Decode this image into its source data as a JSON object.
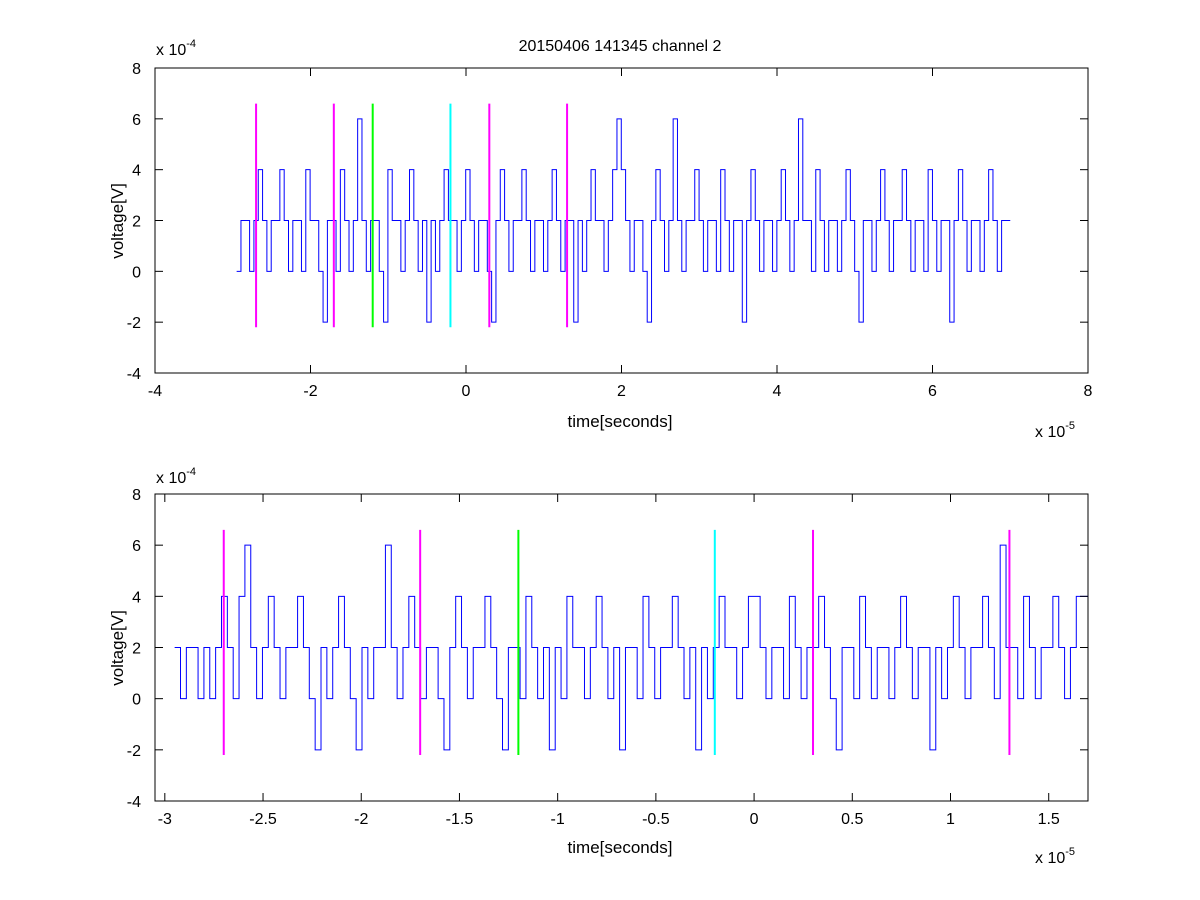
{
  "figure_title": "20150406 141345 channel 2",
  "chart_data": [
    {
      "type": "line",
      "title": "20150406 141345 channel 2",
      "xlabel": "time[seconds]",
      "ylabel": "voltage[V]",
      "x_exponent_label": "x 10",
      "x_exponent_power": "-5",
      "y_exponent_label": "x 10",
      "y_exponent_power": "-4",
      "xlim": [
        -4e-05,
        8e-05
      ],
      "ylim": [
        -0.0004,
        0.0008
      ],
      "x_ticks": [
        -4,
        -2,
        0,
        2,
        4,
        6,
        8
      ],
      "y_ticks": [
        -4,
        -2,
        0,
        2,
        4,
        6,
        8
      ],
      "grid": false,
      "series": [
        {
          "color": "#0000ff",
          "x_start": -2.95e-05,
          "x_end": 7e-05,
          "levels_scaled_1e-4": [
            0,
            2,
            2,
            0,
            2,
            4,
            2,
            0,
            2,
            2,
            4,
            2,
            0,
            2,
            2,
            0,
            4,
            2,
            2,
            0,
            -2,
            2,
            2,
            0,
            4,
            2,
            0,
            2,
            6,
            2,
            0,
            2,
            2,
            0,
            -2,
            4,
            2,
            2,
            0,
            2,
            4,
            2,
            0,
            2,
            -2,
            2,
            0,
            2,
            4,
            2,
            2,
            0,
            2,
            4,
            2,
            0,
            2,
            2,
            0,
            -2,
            2,
            4,
            2,
            0,
            2,
            2,
            4,
            2,
            0,
            2,
            2,
            0,
            2,
            4,
            2,
            0,
            2,
            2,
            -2,
            2,
            0,
            2,
            4,
            2,
            2,
            0,
            2,
            4,
            6,
            4,
            2,
            0,
            2,
            2,
            0,
            -2,
            2,
            4,
            2,
            0,
            2,
            6,
            2,
            0,
            2,
            2,
            4,
            2,
            0,
            2,
            2,
            0,
            4,
            2,
            0,
            2,
            2,
            -2,
            2,
            4,
            2,
            0,
            2,
            2,
            0,
            2,
            4,
            2,
            0,
            2,
            6,
            2,
            2,
            0,
            4,
            2,
            0,
            2,
            2,
            0,
            2,
            4,
            2,
            0,
            -2,
            2,
            2,
            0,
            2,
            4,
            2,
            0,
            2,
            2,
            4,
            2,
            0,
            2,
            2,
            0,
            4,
            2,
            0,
            2,
            2,
            -2,
            2,
            4,
            2,
            0,
            2,
            2,
            0,
            2,
            4,
            2,
            0,
            2,
            2
          ]
        }
      ],
      "markers": [
        {
          "x": -2.7e-05,
          "color": "#ff00ff"
        },
        {
          "x": -1.7e-05,
          "color": "#ff00ff"
        },
        {
          "x": -1.2e-05,
          "color": "#00ff00"
        },
        {
          "x": -2e-06,
          "color": "#00ffff"
        },
        {
          "x": 3e-06,
          "color": "#ff00ff"
        },
        {
          "x": 1.3e-05,
          "color": "#ff00ff"
        }
      ],
      "marker_ylim": [
        -0.00022,
        0.00066
      ]
    },
    {
      "type": "line",
      "title": "",
      "xlabel": "time[seconds]",
      "ylabel": "voltage[V]",
      "x_exponent_label": "x 10",
      "x_exponent_power": "-5",
      "y_exponent_label": "x 10",
      "y_exponent_power": "-4",
      "xlim": [
        -3.05e-05,
        1.7e-05
      ],
      "ylim": [
        -0.0004,
        0.0008
      ],
      "x_ticks": [
        -3,
        -2.5,
        -2,
        -1.5,
        -1,
        -0.5,
        0,
        0.5,
        1,
        1.5
      ],
      "y_ticks": [
        -4,
        -2,
        0,
        2,
        4,
        6,
        8
      ],
      "grid": false,
      "series": [
        {
          "color": "#0000ff",
          "x_start": -2.95e-05,
          "x_end": 1.7e-05,
          "levels_scaled_1e-4": [
            2,
            0,
            2,
            2,
            0,
            2,
            0,
            2,
            4,
            2,
            0,
            4,
            6,
            2,
            0,
            2,
            4,
            2,
            0,
            2,
            2,
            4,
            2,
            0,
            -2,
            2,
            0,
            2,
            4,
            2,
            0,
            -2,
            2,
            0,
            2,
            2,
            6,
            2,
            0,
            2,
            4,
            2,
            0,
            2,
            2,
            0,
            -2,
            2,
            4,
            2,
            0,
            2,
            2,
            4,
            2,
            0,
            -2,
            2,
            2,
            0,
            4,
            2,
            0,
            2,
            -2,
            2,
            0,
            4,
            2,
            2,
            0,
            2,
            4,
            2,
            0,
            2,
            -2,
            2,
            2,
            0,
            4,
            2,
            0,
            2,
            2,
            4,
            2,
            0,
            2,
            -2,
            2,
            0,
            2,
            4,
            2,
            2,
            0,
            2,
            4,
            4,
            2,
            0,
            2,
            2,
            0,
            4,
            2,
            0,
            2,
            2,
            4,
            2,
            0,
            -2,
            2,
            2,
            0,
            4,
            2,
            0,
            2,
            2,
            0,
            2,
            4,
            2,
            0,
            2,
            2,
            -2,
            2,
            0,
            2,
            4,
            2,
            0,
            2,
            2,
            4,
            2,
            0,
            6,
            2,
            2,
            0,
            4,
            2,
            0,
            2,
            2,
            4,
            2,
            0,
            2,
            4,
            4
          ]
        }
      ],
      "markers": [
        {
          "x": -2.7e-05,
          "color": "#ff00ff"
        },
        {
          "x": -1.7e-05,
          "color": "#ff00ff"
        },
        {
          "x": -1.2e-05,
          "color": "#00ff00"
        },
        {
          "x": -2e-06,
          "color": "#00ffff"
        },
        {
          "x": 3e-06,
          "color": "#ff00ff"
        },
        {
          "x": 1.3e-05,
          "color": "#ff00ff"
        }
      ],
      "marker_ylim": [
        -0.00022,
        0.00066
      ]
    }
  ]
}
